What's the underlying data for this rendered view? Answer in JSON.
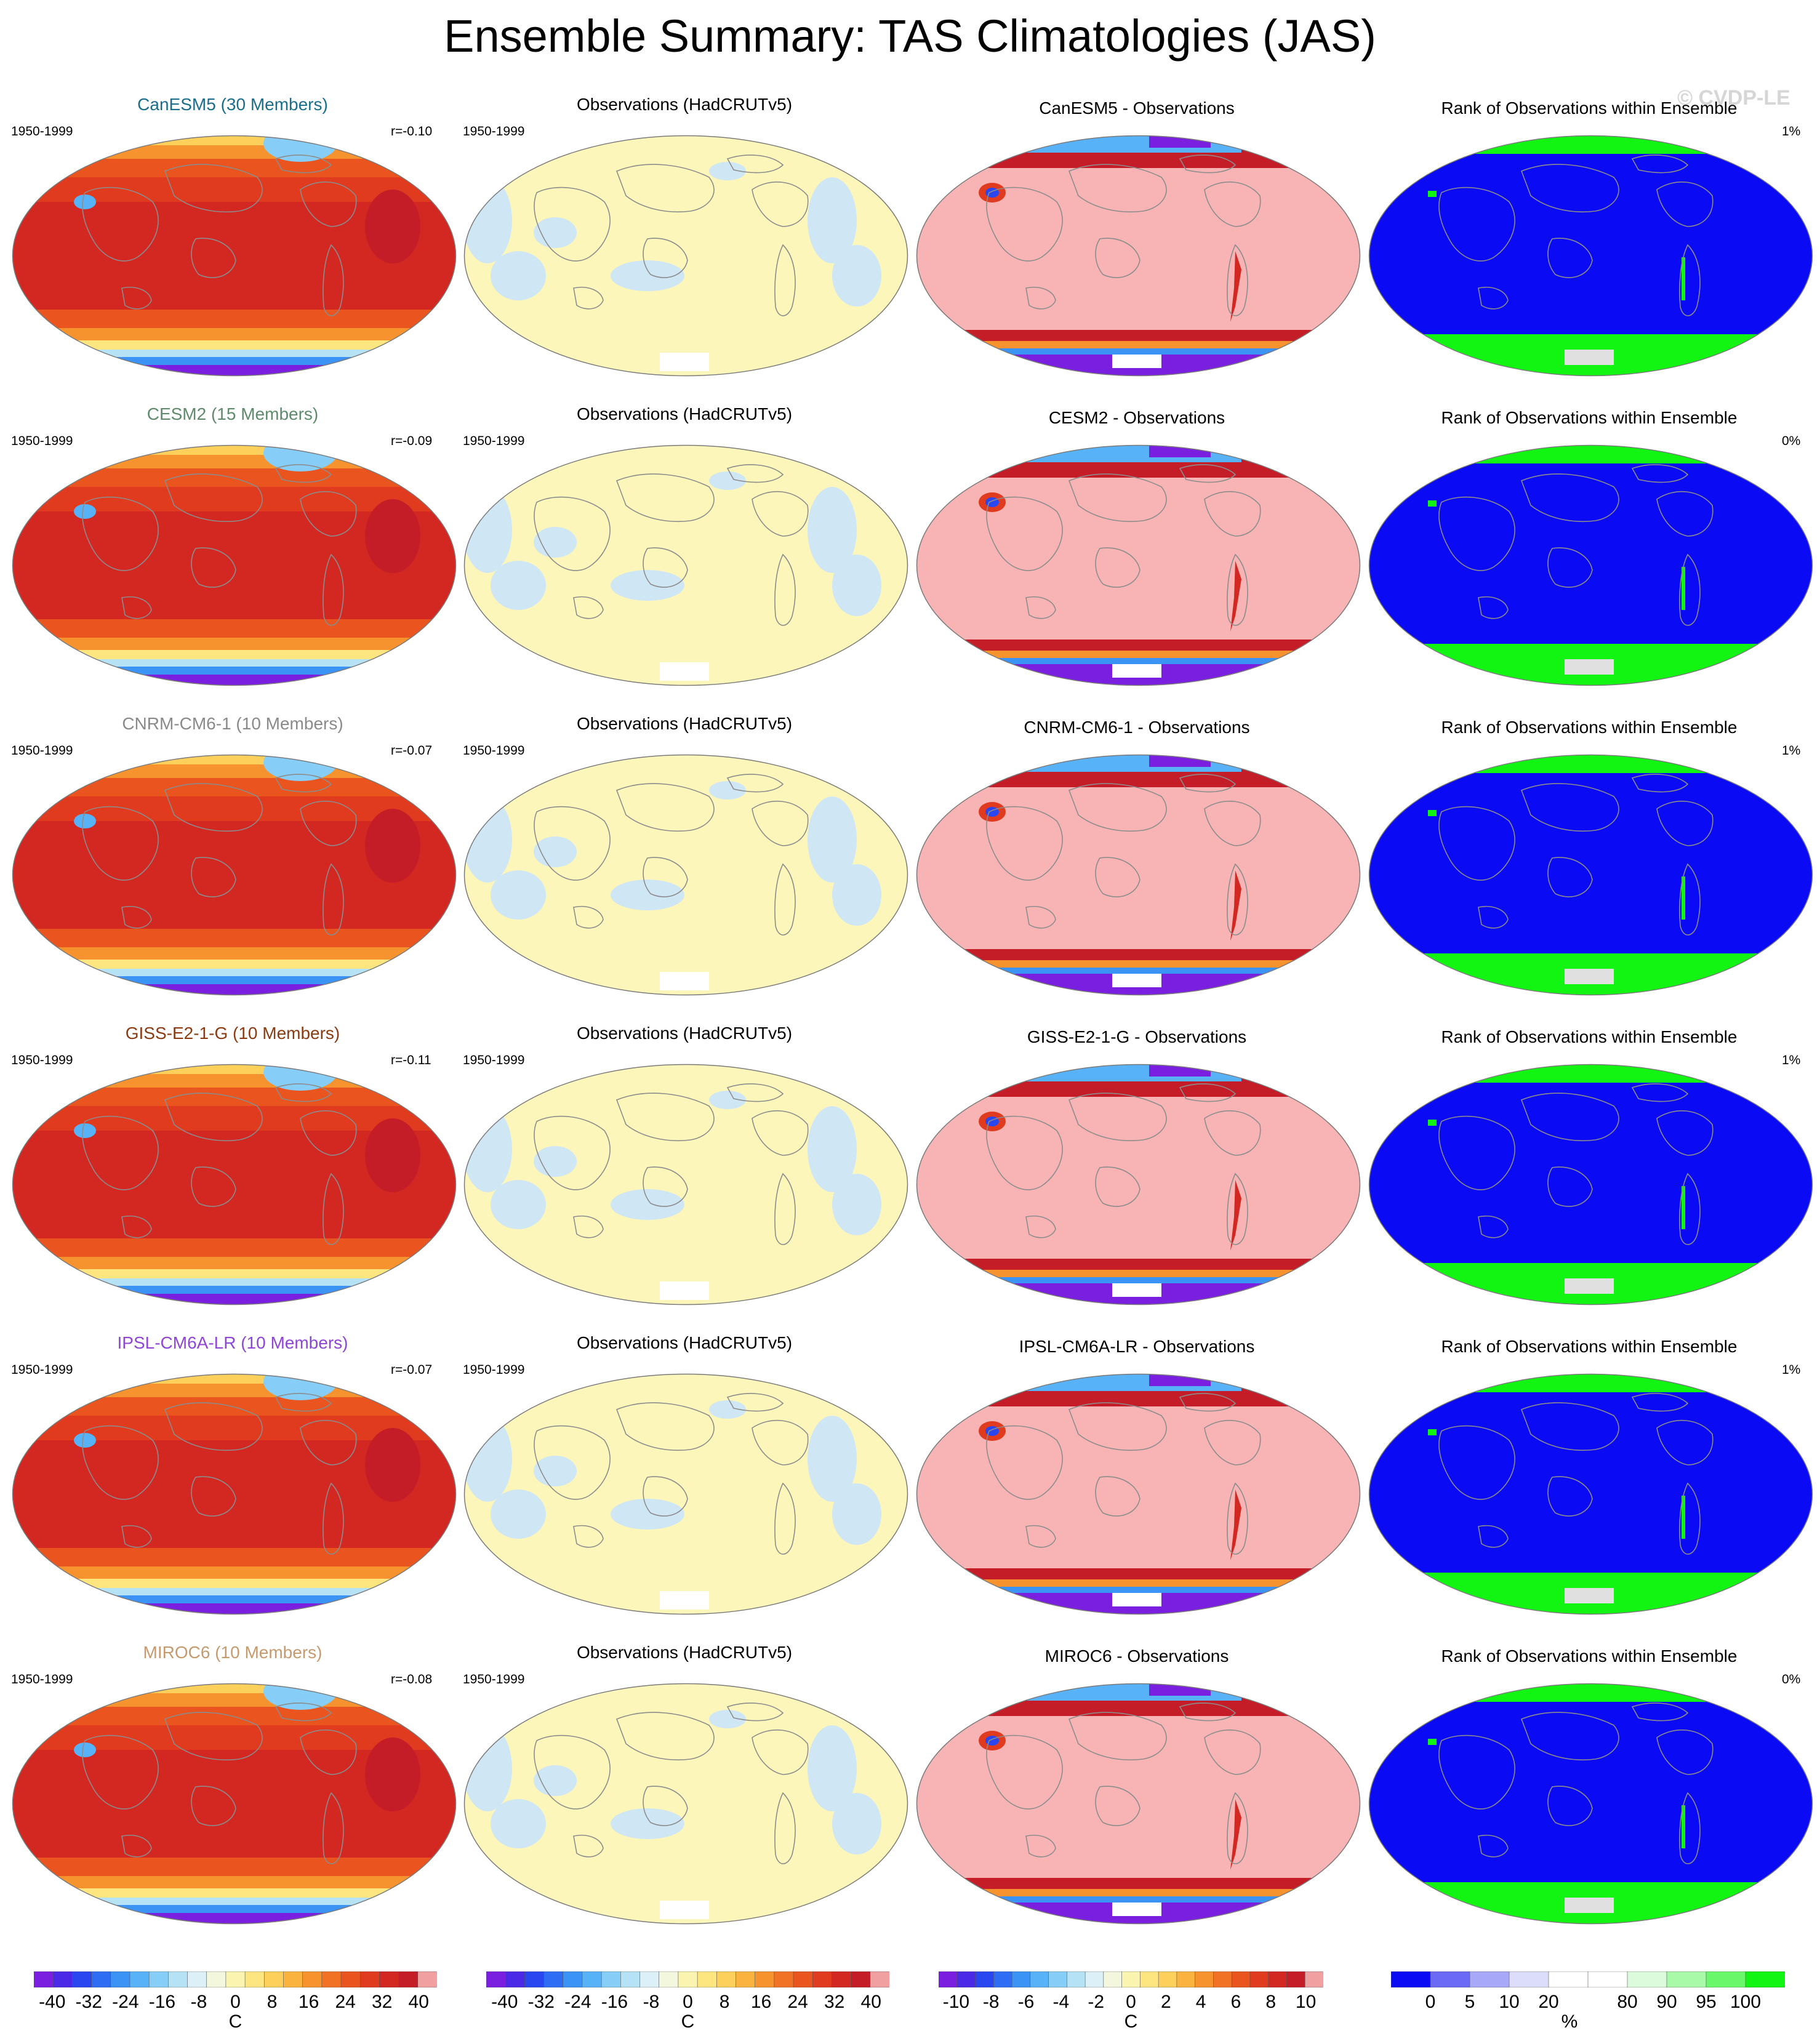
{
  "title": "Ensemble Summary: TAS Climatologies (JAS)",
  "watermark": "© CVDP-LE",
  "obs_title": "Observations (HadCRUTv5)",
  "rank_title": "Rank of Observations within Ensemble",
  "period": "1950-1999",
  "rows": [
    {
      "model_title": "CanESM5 (30 Members)",
      "title_color": "#1a6e8c",
      "r": "r=-0.10",
      "diff_title": "CanESM5 - Observations",
      "rank_pct": "1%"
    },
    {
      "model_title": "CESM2 (15 Members)",
      "title_color": "#5f8a6c",
      "r": "r=-0.09",
      "diff_title": "CESM2 - Observations",
      "rank_pct": "0%"
    },
    {
      "model_title": "CNRM-CM6-1 (10 Members)",
      "title_color": "#8a8a8a",
      "r": "r=-0.07",
      "diff_title": "CNRM-CM6-1 - Observations",
      "rank_pct": "1%"
    },
    {
      "model_title": "GISS-E2-1-G (10 Members)",
      "title_color": "#8a3b12",
      "r": "r=-0.11",
      "diff_title": "GISS-E2-1-G - Observations",
      "rank_pct": "1%"
    },
    {
      "model_title": "IPSL-CM6A-LR (10 Members)",
      "title_color": "#8f45d6",
      "r": "r=-0.07",
      "diff_title": "IPSL-CM6A-LR - Observations",
      "rank_pct": "1%"
    },
    {
      "model_title": "MIROC6 (10 Members)",
      "title_color": "#c79a6e",
      "r": "r=-0.08",
      "diff_title": "MIROC6 - Observations",
      "rank_pct": "0%"
    }
  ],
  "colorbars": [
    {
      "unit": "C",
      "ticks": [
        "-40",
        "-32",
        "-24",
        "-16",
        "-8",
        "0",
        "8",
        "16",
        "24",
        "32",
        "40"
      ]
    },
    {
      "unit": "C",
      "ticks": [
        "-40",
        "-32",
        "-24",
        "-16",
        "-8",
        "0",
        "8",
        "16",
        "24",
        "32",
        "40"
      ]
    },
    {
      "unit": "C",
      "ticks": [
        "-10",
        "-8",
        "-6",
        "-4",
        "-2",
        "0",
        "2",
        "4",
        "6",
        "8",
        "10"
      ]
    },
    {
      "unit": "%",
      "ticks": [
        "0",
        "5",
        "10",
        "20",
        "80",
        "90",
        "95",
        "100"
      ]
    }
  ],
  "colors": {
    "temp_scale": [
      "#7a1fe0",
      "#4a2ae6",
      "#2a46f0",
      "#2f6cf4",
      "#3c93f6",
      "#58b2f8",
      "#86cdf7",
      "#b6e2f5",
      "#dcf0f8",
      "#f3f7dd",
      "#fbf4b0",
      "#fde680",
      "#fdd05c",
      "#fbb340",
      "#f7932e",
      "#f17224",
      "#e9541f",
      "#e03a1f",
      "#d32722",
      "#c51d28",
      "#f0a0a0"
    ],
    "obs_fill": "#fdf6bb",
    "obs_blue": "#cfe6f5",
    "diff_fill": "#f8b4b4",
    "rank_fill": "#0a0af5",
    "rank_green": "#12f512",
    "rank_scale": [
      "#0a0af5",
      "#6a6af7",
      "#a8a8f9",
      "#dcdcfb",
      "#ffffff",
      "#ffffff",
      "#dcfbdc",
      "#a8f9a8",
      "#6af76a",
      "#12f512"
    ]
  }
}
